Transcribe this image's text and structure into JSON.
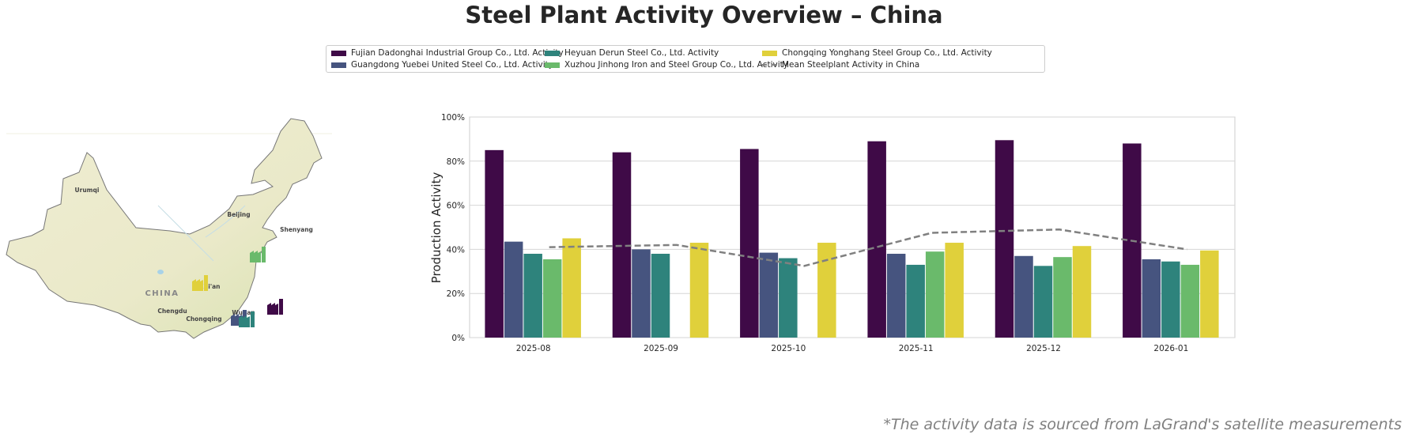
{
  "title": "Steel Plant Activity Overview – China",
  "note": "*The activity data is sourced from LaGrand's satellite measurements",
  "map": {
    "labels": [
      "Urumqi",
      "Beijing",
      "Shenyang",
      "CHINA",
      "Xi'an",
      "Chengdu",
      "Chongqing",
      "Wuhan"
    ]
  },
  "chart_data": {
    "type": "bar",
    "title": "",
    "xlabel": "",
    "ylabel": "Production Activity",
    "ylim": [
      0,
      100
    ],
    "yticks": [
      "0%",
      "20%",
      "40%",
      "60%",
      "80%",
      "100%"
    ],
    "categories": [
      "2025-08",
      "2025-09",
      "2025-10",
      "2025-11",
      "2025-12",
      "2026-01"
    ],
    "series": [
      {
        "name": "Fujian Dadonghai Industrial Group Co., Ltd. Activity",
        "color": "#3f0a47",
        "values": [
          85,
          84,
          85.5,
          89,
          89.5,
          88
        ]
      },
      {
        "name": "Guangdong Yuebei United Steel Co., Ltd. Activity",
        "color": "#46547f",
        "values": [
          43.5,
          40,
          38.5,
          38,
          37,
          35.5
        ]
      },
      {
        "name": "Heyuan Derun Steel Co., Ltd. Activity",
        "color": "#2e837c",
        "values": [
          38,
          38,
          36,
          33,
          32.5,
          34.5
        ]
      },
      {
        "name": "Xuzhou Jinhong Iron and Steel Group Co., Ltd. Activity",
        "color": "#6aba6b",
        "values": [
          35.5,
          null,
          null,
          39,
          36.5,
          33
        ]
      },
      {
        "name": "Chongqing Yonghang Steel Group Co., Ltd. Activity",
        "color": "#e0d03b",
        "values": [
          45,
          43,
          43,
          43,
          41.5,
          39.5
        ]
      }
    ],
    "line": {
      "name": "Mean Steelplant Activity in China",
      "color": "#808080",
      "values": [
        41,
        42,
        32.5,
        47.5,
        49,
        40
      ]
    },
    "grid": true,
    "legend_placement": "top-center"
  }
}
